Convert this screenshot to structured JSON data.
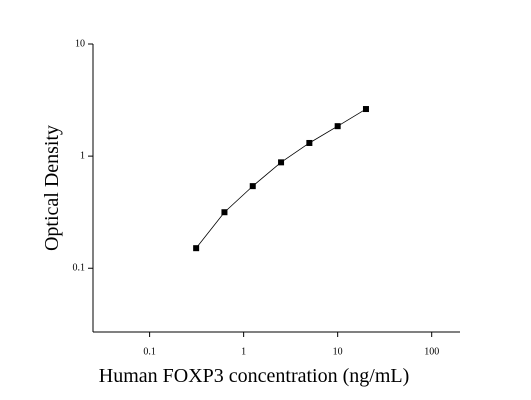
{
  "chart_data": {
    "type": "scatter",
    "xlabel": "Human FOXP3 concentration (ng/mL)",
    "ylabel": "Optical Density",
    "x": [
      0.3125,
      0.625,
      1.25,
      2.5,
      5,
      10,
      20
    ],
    "series": [
      {
        "values": [
          0.151,
          0.316,
          0.54,
          0.88,
          1.31,
          1.85,
          2.63
        ],
        "color": "#000000"
      }
    ],
    "xlim": [
      0.025,
      200
    ],
    "ylim": [
      0.027,
      10
    ],
    "xticks": [
      0.1,
      1,
      10,
      100
    ],
    "yticks": [
      0.1,
      1,
      10
    ],
    "xscale": "log",
    "yscale": "log",
    "fit_line": true
  }
}
